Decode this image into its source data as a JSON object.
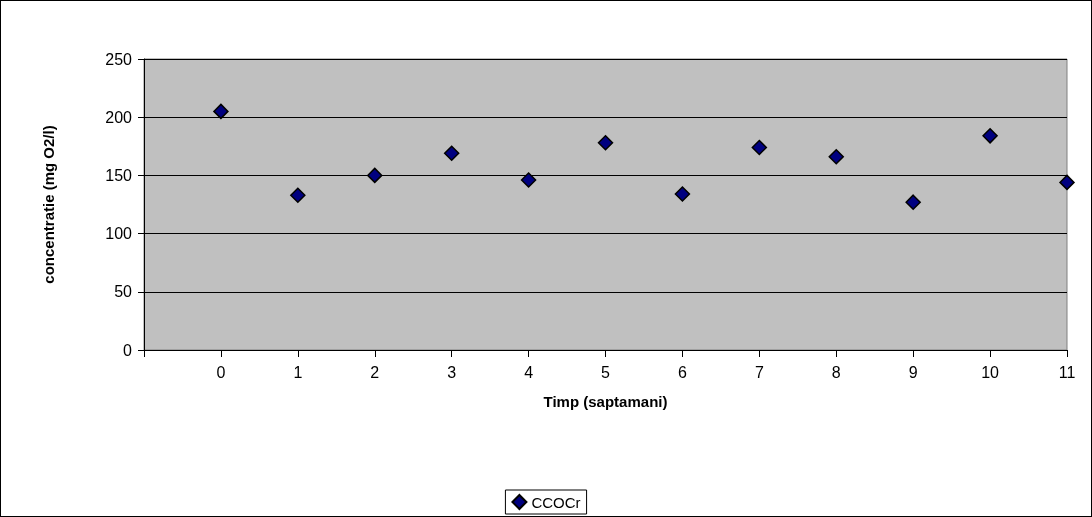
{
  "chart_data": {
    "type": "scatter",
    "xlabel": "Timp (saptamani)",
    "ylabel": "concentratie (mg O2/l)",
    "x": [
      0,
      1,
      2,
      3,
      4,
      5,
      6,
      7,
      8,
      9,
      10,
      11
    ],
    "series": [
      {
        "name": "CCOCr",
        "color": "#000080",
        "values": [
          205,
          133,
          150,
          169,
          146,
          178,
          134,
          174,
          166,
          127,
          184,
          144
        ]
      }
    ],
    "xlim": [
      -1,
      11
    ],
    "xticks": [
      {
        "value": -1,
        "label": null
      },
      0,
      1,
      2,
      3,
      4,
      5,
      6,
      7,
      8,
      9,
      10,
      11
    ],
    "ylim": [
      0,
      250
    ],
    "yticks": [
      0,
      50,
      100,
      150,
      200,
      250
    ],
    "grid": "y",
    "legend": "bottom",
    "marker": "diamond"
  }
}
